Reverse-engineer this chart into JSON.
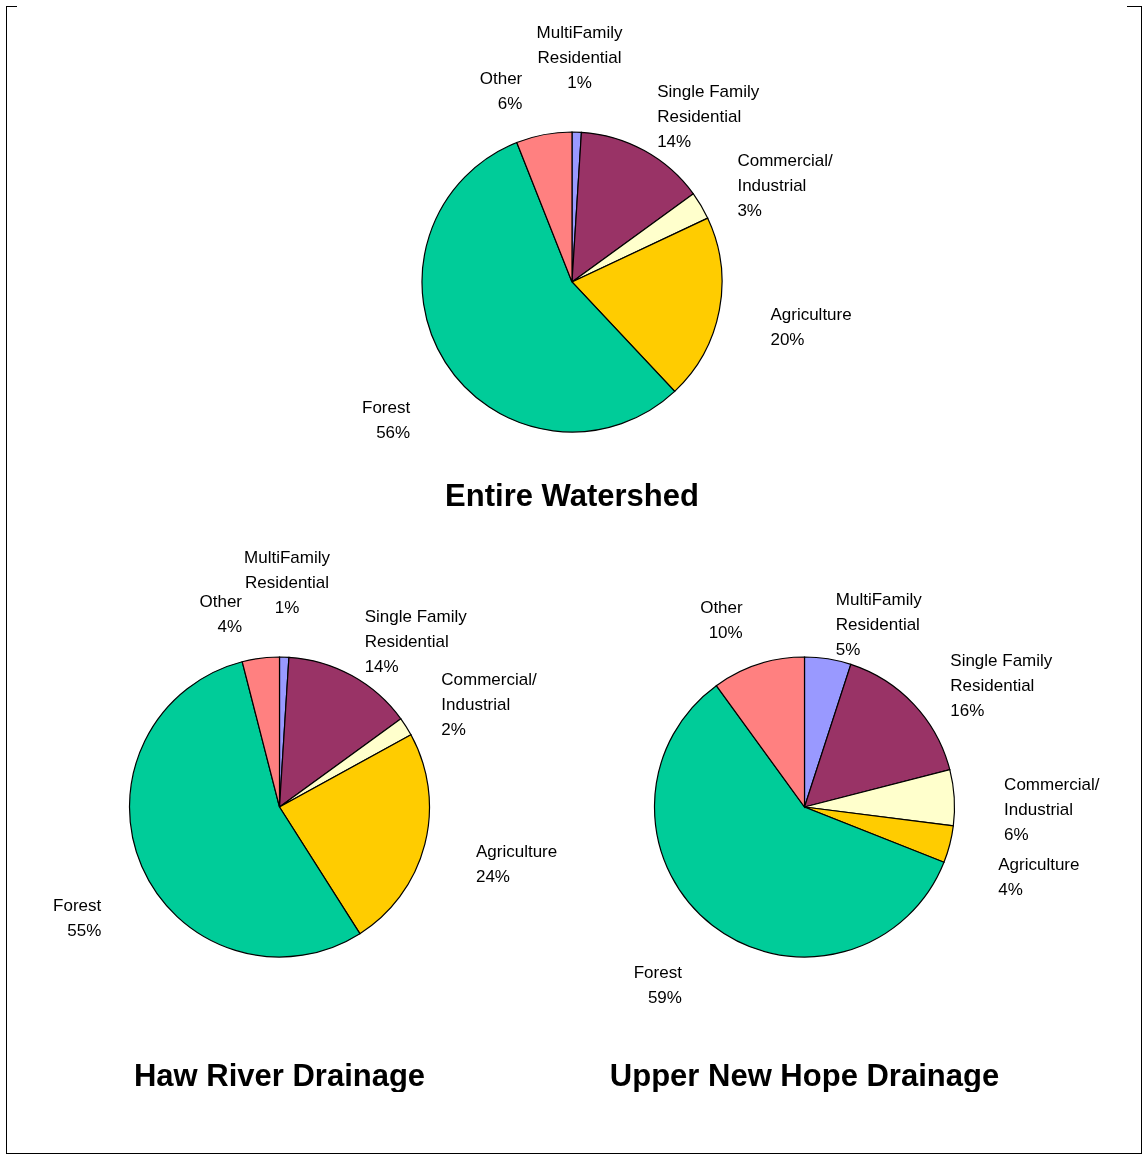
{
  "chart_data": [
    {
      "type": "pie",
      "title": "Entire Watershed",
      "categories": [
        "MultiFamily Residential",
        "Single Family Residential",
        "Commercial/ Industrial",
        "Agriculture",
        "Forest",
        "Other"
      ],
      "values": [
        1,
        14,
        3,
        20,
        56,
        6
      ],
      "value_labels": [
        "1%",
        "14%",
        "3%",
        "20%",
        "56%",
        "6%"
      ],
      "colors": [
        "#9999ff",
        "#993366",
        "#ffffcc",
        "#ffcc00",
        "#00cc99",
        "#ff8080"
      ]
    },
    {
      "type": "pie",
      "title": "Haw River Drainage",
      "categories": [
        "MultiFamily Residential",
        "Single Family Residential",
        "Commercial/ Industrial",
        "Agriculture",
        "Forest",
        "Other"
      ],
      "values": [
        1,
        14,
        2,
        24,
        55,
        4
      ],
      "value_labels": [
        "1%",
        "14%",
        "2%",
        "24%",
        "55%",
        "4%"
      ],
      "colors": [
        "#9999ff",
        "#993366",
        "#ffffcc",
        "#ffcc00",
        "#00cc99",
        "#ff8080"
      ]
    },
    {
      "type": "pie",
      "title": "Upper New Hope Drainage",
      "categories": [
        "MultiFamily Residential",
        "Single Family Residential",
        "Commercial/ Industrial",
        "Agriculture",
        "Forest",
        "Other"
      ],
      "values": [
        5,
        16,
        6,
        4,
        59,
        10
      ],
      "value_labels": [
        "5%",
        "16%",
        "6%",
        "4%",
        "59%",
        "10%"
      ],
      "colors": [
        "#9999ff",
        "#993366",
        "#ffffcc",
        "#ffcc00",
        "#00cc99",
        "#ff8080"
      ]
    }
  ]
}
